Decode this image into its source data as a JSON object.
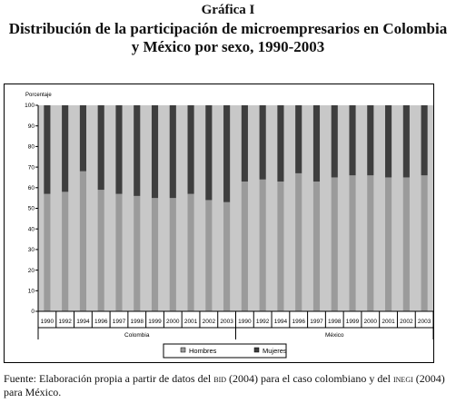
{
  "heading": {
    "label": "Gráfica I",
    "title_line1": "Distribución de la participación de microempresarios en Colombia",
    "title_line2": "y México por sexo, 1990-2003"
  },
  "source": {
    "prefix": "Fuente: Elaboración propia a partir de datos del ",
    "org1": "bid",
    "middle": " (2004) para el caso colombiano y del ",
    "org2": "inegi",
    "suffix": " (2004) para México."
  },
  "colors": {
    "plot_bg": "#c8c8c8",
    "hombres": "#9b9b9b",
    "mujeres": "#3e3e3e",
    "frame": "#000000"
  },
  "chart_data": {
    "type": "bar",
    "stacked": true,
    "ylabel": "Porcentaje",
    "ylim": [
      0,
      100
    ],
    "yticks": [
      0,
      10,
      20,
      30,
      40,
      50,
      60,
      70,
      80,
      90,
      100
    ],
    "grid": false,
    "legend_position": "bottom",
    "groups": [
      {
        "name": "Colombia",
        "categories": [
          "1990",
          "1992",
          "1994",
          "1996",
          "1997",
          "1998",
          "1999",
          "2000",
          "2001",
          "2002",
          "2003"
        ]
      },
      {
        "name": "México",
        "categories": [
          "1990",
          "1992",
          "1994",
          "1996",
          "1997",
          "1998",
          "1999",
          "2000",
          "2001",
          "2002",
          "2003"
        ]
      }
    ],
    "series": [
      {
        "name": "Hombres",
        "values": [
          57,
          58,
          68,
          59,
          57,
          56,
          55,
          55,
          57,
          54,
          53,
          63,
          64,
          63,
          67,
          63,
          65,
          66,
          66,
          65,
          65,
          66
        ]
      },
      {
        "name": "Mujeres",
        "values": [
          43,
          42,
          32,
          41,
          43,
          44,
          45,
          45,
          43,
          46,
          47,
          37,
          36,
          37,
          33,
          37,
          35,
          34,
          34,
          35,
          35,
          34
        ]
      }
    ]
  }
}
